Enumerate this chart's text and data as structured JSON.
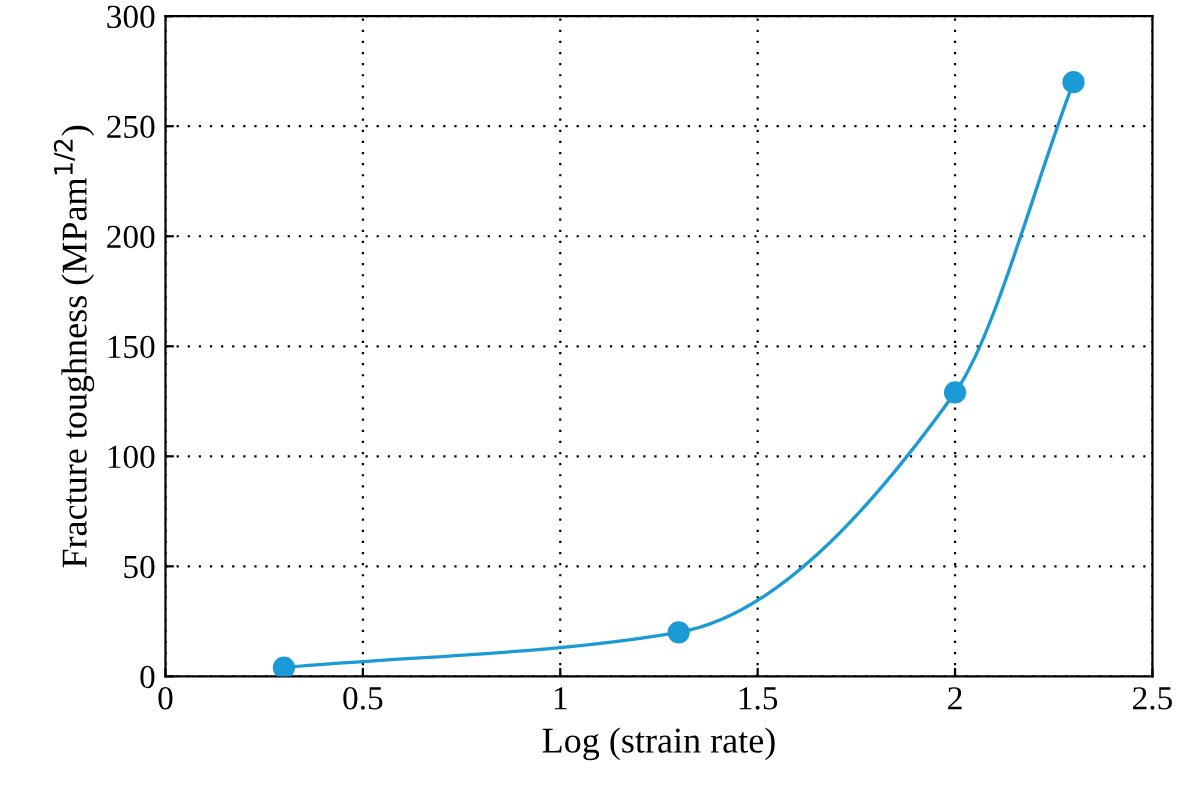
{
  "chart_data": {
    "type": "line",
    "xlabel": "Log (strain rate)",
    "ylabel": "Fracture toughness (MPam$^{1/2}$)",
    "x": [
      0.3,
      1.3,
      2.0,
      2.3
    ],
    "series": [
      {
        "color": "#1b9ad6",
        "values": [
          4,
          20,
          129,
          270
        ]
      }
    ],
    "xlim": [
      0,
      2.5
    ],
    "ylim": [
      0,
      300
    ],
    "xticks": [
      0,
      0.5,
      1,
      1.5,
      2,
      2.5
    ],
    "yticks": [
      0,
      50,
      100,
      150,
      200,
      250,
      300
    ],
    "grid": true,
    "marker": "circle",
    "line_style": "solid"
  }
}
